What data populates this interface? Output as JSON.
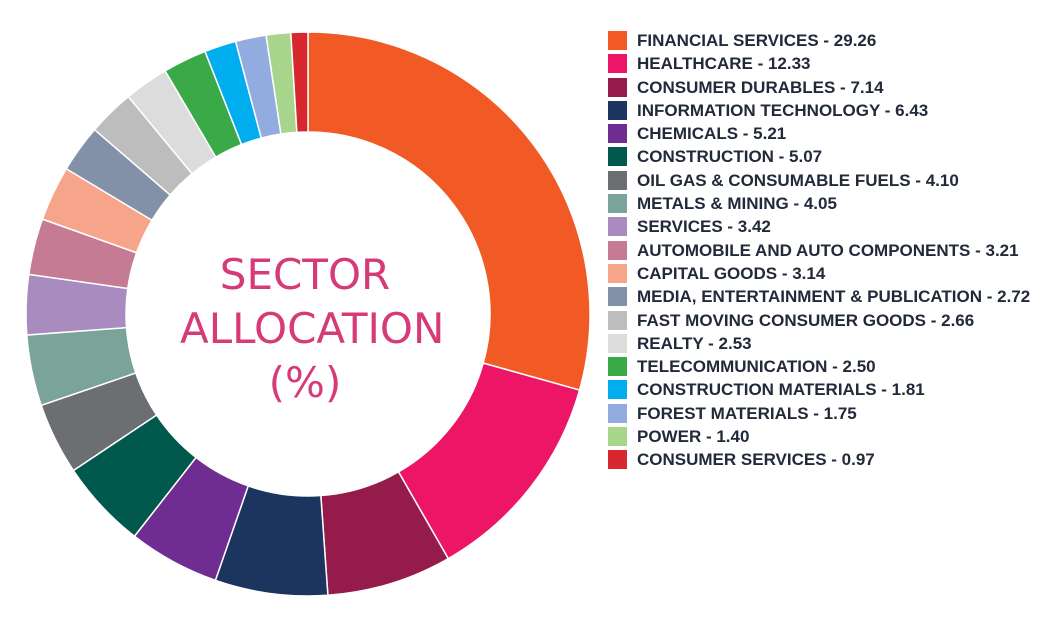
{
  "chart_data": {
    "type": "pie",
    "title_lines": [
      "SECTOR",
      "ALLOCATION",
      "(%)"
    ],
    "slices": [
      {
        "label": "FINANCIAL SERVICES - 29.26",
        "value": 29.26,
        "color": "#f15a24"
      },
      {
        "label": "HEALTHCARE - 12.33",
        "value": 12.33,
        "color": "#ec1566"
      },
      {
        "label": "CONSUMER DURABLES - 7.14",
        "value": 7.14,
        "color": "#941b4a"
      },
      {
        "label": "INFORMATION TECHNOLOGY - 6.43",
        "value": 6.43,
        "color": "#1c355e"
      },
      {
        "label": "CHEMICALS - 5.21",
        "value": 5.21,
        "color": "#6f2c91"
      },
      {
        "label": "CONSTRUCTION - 5.07",
        "value": 5.07,
        "color": "#00594c"
      },
      {
        "label": "OIL GAS & CONSUMABLE FUELS - 4.10",
        "value": 4.1,
        "color": "#6d6e71"
      },
      {
        "label": "METALS & MINING - 4.05",
        "value": 4.05,
        "color": "#7aa39a"
      },
      {
        "label": "SERVICES - 3.42",
        "value": 3.42,
        "color": "#a98bc0"
      },
      {
        "label": "AUTOMOBILE AND AUTO COMPONENTS - 3.21",
        "value": 3.21,
        "color": "#c67b95"
      },
      {
        "label": "CAPITAL GOODS - 3.14",
        "value": 3.14,
        "color": "#f7a58a"
      },
      {
        "label": "MEDIA, ENTERTAINMENT & PUBLICATION - 2.72",
        "value": 2.72,
        "color": "#8290a8"
      },
      {
        "label": "FAST MOVING CONSUMER GOODS - 2.66",
        "value": 2.66,
        "color": "#bdbdbd"
      },
      {
        "label": "REALTY - 2.53",
        "value": 2.53,
        "color": "#dcdcdc"
      },
      {
        "label": "TELECOMMUNICATION - 2.50",
        "value": 2.5,
        "color": "#3aaa48"
      },
      {
        "label": "CONSTRUCTION MATERIALS - 1.81",
        "value": 1.81,
        "color": "#00adef"
      },
      {
        "label": "FOREST MATERIALS - 1.75",
        "value": 1.75,
        "color": "#92acdf"
      },
      {
        "label": "POWER - 1.40",
        "value": 1.4,
        "color": "#a8d58c"
      },
      {
        "label": "CONSUMER SERVICES - 0.97",
        "value": 0.97,
        "color": "#d7282f"
      }
    ],
    "legend_position": "right"
  }
}
